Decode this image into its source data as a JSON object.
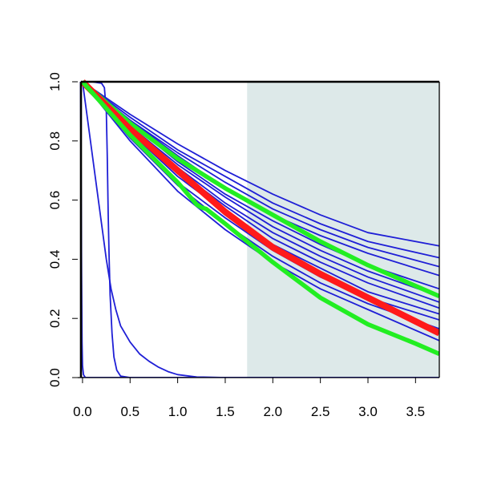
{
  "chart_data": {
    "type": "line",
    "title": "",
    "xlabel": "",
    "ylabel": "",
    "xlim": [
      -0.05,
      3.75
    ],
    "ylim": [
      0.0,
      1.0
    ],
    "x_ticks": [
      0.0,
      0.5,
      1.0,
      1.5,
      2.0,
      2.5,
      3.0,
      3.5
    ],
    "x_tick_labels": [
      "0.0",
      "0.5",
      "1.0",
      "1.5",
      "2.0",
      "2.5",
      "3.0",
      "3.5"
    ],
    "y_ticks": [
      0.0,
      0.2,
      0.4,
      0.6,
      0.8,
      1.0
    ],
    "y_tick_labels": [
      "0.0",
      "0.2",
      "0.4",
      "0.6",
      "0.8",
      "1.0"
    ],
    "grid": false,
    "legend": "none",
    "shaded_region": {
      "x_start": 1.73,
      "x_end": 3.75,
      "color": "#dde9e9"
    },
    "colors": {
      "blue": "#1f1fd6",
      "red": "#ff1a1a",
      "green": "#22ee22"
    },
    "series": [
      {
        "color": "blue",
        "width": 1.8,
        "points": [
          [
            0.0,
            1.0
          ],
          [
            0.5,
            0.89
          ],
          [
            1.0,
            0.79
          ],
          [
            1.5,
            0.7
          ],
          [
            2.0,
            0.62
          ],
          [
            2.5,
            0.55
          ],
          [
            3.0,
            0.49
          ],
          [
            3.75,
            0.445
          ]
        ]
      },
      {
        "color": "blue",
        "width": 1.8,
        "points": [
          [
            0.0,
            1.0
          ],
          [
            0.5,
            0.88
          ],
          [
            1.0,
            0.77
          ],
          [
            1.5,
            0.68
          ],
          [
            2.0,
            0.59
          ],
          [
            2.5,
            0.52
          ],
          [
            3.0,
            0.46
          ],
          [
            3.75,
            0.405
          ]
        ]
      },
      {
        "color": "blue",
        "width": 1.8,
        "points": [
          [
            0.0,
            1.0
          ],
          [
            0.5,
            0.87
          ],
          [
            1.0,
            0.76
          ],
          [
            1.5,
            0.66
          ],
          [
            2.0,
            0.57
          ],
          [
            2.5,
            0.5
          ],
          [
            3.0,
            0.44
          ],
          [
            3.75,
            0.375
          ]
        ]
      },
      {
        "color": "blue",
        "width": 1.8,
        "points": [
          [
            0.0,
            1.0
          ],
          [
            0.5,
            0.87
          ],
          [
            1.0,
            0.75
          ],
          [
            1.5,
            0.64
          ],
          [
            2.0,
            0.55
          ],
          [
            2.5,
            0.48
          ],
          [
            3.0,
            0.42
          ],
          [
            3.75,
            0.345
          ]
        ]
      },
      {
        "color": "blue",
        "width": 1.8,
        "points": [
          [
            0.0,
            1.0
          ],
          [
            0.5,
            0.86
          ],
          [
            1.0,
            0.73
          ],
          [
            1.5,
            0.62
          ],
          [
            2.0,
            0.53
          ],
          [
            2.5,
            0.45
          ],
          [
            3.0,
            0.38
          ],
          [
            3.75,
            0.3
          ]
        ]
      },
      {
        "color": "blue",
        "width": 1.8,
        "points": [
          [
            0.0,
            1.0
          ],
          [
            0.5,
            0.85
          ],
          [
            1.0,
            0.72
          ],
          [
            1.5,
            0.61
          ],
          [
            2.0,
            0.51
          ],
          [
            2.5,
            0.43
          ],
          [
            3.0,
            0.36
          ],
          [
            3.75,
            0.275
          ]
        ]
      },
      {
        "color": "blue",
        "width": 1.8,
        "points": [
          [
            0.0,
            1.0
          ],
          [
            0.5,
            0.85
          ],
          [
            1.0,
            0.71
          ],
          [
            1.5,
            0.59
          ],
          [
            2.0,
            0.49
          ],
          [
            2.5,
            0.41
          ],
          [
            3.0,
            0.34
          ],
          [
            3.75,
            0.255
          ]
        ]
      },
      {
        "color": "blue",
        "width": 1.8,
        "points": [
          [
            0.0,
            1.0
          ],
          [
            0.5,
            0.84
          ],
          [
            1.0,
            0.7
          ],
          [
            1.5,
            0.58
          ],
          [
            2.0,
            0.47
          ],
          [
            2.5,
            0.39
          ],
          [
            3.0,
            0.32
          ],
          [
            3.75,
            0.235
          ]
        ]
      },
      {
        "color": "blue",
        "width": 1.8,
        "points": [
          [
            0.0,
            1.0
          ],
          [
            0.5,
            0.83
          ],
          [
            1.0,
            0.68
          ],
          [
            1.5,
            0.56
          ],
          [
            2.0,
            0.45
          ],
          [
            2.5,
            0.37
          ],
          [
            3.0,
            0.29
          ],
          [
            3.75,
            0.215
          ]
        ]
      },
      {
        "color": "blue",
        "width": 1.8,
        "points": [
          [
            0.0,
            1.0
          ],
          [
            0.5,
            0.82
          ],
          [
            1.0,
            0.66
          ],
          [
            1.5,
            0.54
          ],
          [
            2.0,
            0.43
          ],
          [
            2.5,
            0.34
          ],
          [
            3.0,
            0.27
          ],
          [
            3.75,
            0.195
          ]
        ]
      },
      {
        "color": "blue",
        "width": 1.8,
        "points": [
          [
            0.0,
            1.0
          ],
          [
            0.5,
            0.81
          ],
          [
            1.0,
            0.65
          ],
          [
            1.5,
            0.52
          ],
          [
            2.0,
            0.41
          ],
          [
            2.5,
            0.32
          ],
          [
            3.0,
            0.25
          ],
          [
            3.75,
            0.165
          ]
        ]
      },
      {
        "color": "blue",
        "width": 1.8,
        "points": [
          [
            0.0,
            1.0
          ],
          [
            0.5,
            0.8
          ],
          [
            1.0,
            0.63
          ],
          [
            1.5,
            0.5
          ],
          [
            2.0,
            0.39
          ],
          [
            2.5,
            0.3
          ],
          [
            3.0,
            0.23
          ],
          [
            3.75,
            0.125
          ]
        ]
      },
      {
        "color": "blue",
        "width": 1.8,
        "points": [
          [
            0.0,
            1.0
          ],
          [
            0.05,
            0.88
          ],
          [
            0.1,
            0.76
          ],
          [
            0.15,
            0.64
          ],
          [
            0.2,
            0.52
          ],
          [
            0.25,
            0.4
          ],
          [
            0.3,
            0.3
          ],
          [
            0.35,
            0.23
          ],
          [
            0.4,
            0.175
          ],
          [
            0.5,
            0.12
          ],
          [
            0.6,
            0.08
          ],
          [
            0.7,
            0.055
          ],
          [
            0.8,
            0.035
          ],
          [
            0.9,
            0.02
          ],
          [
            1.0,
            0.01
          ],
          [
            1.2,
            0.002
          ],
          [
            1.5,
            0.0
          ],
          [
            3.75,
            0.0
          ]
        ]
      },
      {
        "color": "blue",
        "width": 1.8,
        "points": [
          [
            -0.02,
            1.0
          ],
          [
            0.1,
            1.0
          ],
          [
            0.2,
            0.995
          ],
          [
            0.23,
            0.98
          ],
          [
            0.25,
            0.9
          ],
          [
            0.26,
            0.75
          ],
          [
            0.27,
            0.55
          ],
          [
            0.28,
            0.4
          ],
          [
            0.29,
            0.28
          ],
          [
            0.31,
            0.15
          ],
          [
            0.33,
            0.07
          ],
          [
            0.36,
            0.025
          ],
          [
            0.4,
            0.005
          ],
          [
            0.5,
            0.0
          ],
          [
            3.75,
            0.0
          ]
        ]
      },
      {
        "color": "blue",
        "width": 1.8,
        "points": [
          [
            -0.02,
            1.0
          ],
          [
            -0.015,
            0.7
          ],
          [
            -0.01,
            0.35
          ],
          [
            -0.005,
            0.12
          ],
          [
            0.0,
            0.04
          ],
          [
            0.01,
            0.01
          ],
          [
            0.03,
            0.0
          ],
          [
            3.75,
            0.0
          ]
        ]
      },
      {
        "color": "blue",
        "width": 1.8,
        "points": [
          [
            -0.02,
            0.0
          ],
          [
            3.75,
            0.0
          ]
        ]
      },
      {
        "color": "green",
        "width": 5.5,
        "points": [
          [
            0.0,
            1.0
          ],
          [
            0.5,
            0.86
          ],
          [
            1.0,
            0.74
          ],
          [
            1.5,
            0.64
          ],
          [
            2.0,
            0.55
          ],
          [
            2.5,
            0.46
          ],
          [
            3.0,
            0.38
          ],
          [
            3.75,
            0.275
          ]
        ]
      },
      {
        "color": "red",
        "width": 8.0,
        "points": [
          [
            0.0,
            1.0
          ],
          [
            0.25,
            0.92
          ],
          [
            0.5,
            0.84
          ],
          [
            0.75,
            0.77
          ],
          [
            1.0,
            0.7
          ],
          [
            1.25,
            0.63
          ],
          [
            1.5,
            0.56
          ],
          [
            2.0,
            0.44
          ],
          [
            2.5,
            0.35
          ],
          [
            3.0,
            0.27
          ],
          [
            3.5,
            0.19
          ],
          [
            3.75,
            0.15
          ]
        ]
      },
      {
        "color": "green",
        "width": 5.5,
        "points": [
          [
            0.0,
            1.0
          ],
          [
            0.25,
            0.91
          ],
          [
            0.5,
            0.82
          ],
          [
            0.75,
            0.74
          ],
          [
            1.0,
            0.66
          ],
          [
            1.2,
            0.585
          ],
          [
            1.25,
            0.575
          ],
          [
            1.3,
            0.57
          ],
          [
            1.5,
            0.52
          ],
          [
            2.0,
            0.39
          ],
          [
            2.5,
            0.27
          ],
          [
            3.0,
            0.18
          ],
          [
            3.5,
            0.115
          ],
          [
            3.75,
            0.08
          ]
        ]
      }
    ]
  }
}
